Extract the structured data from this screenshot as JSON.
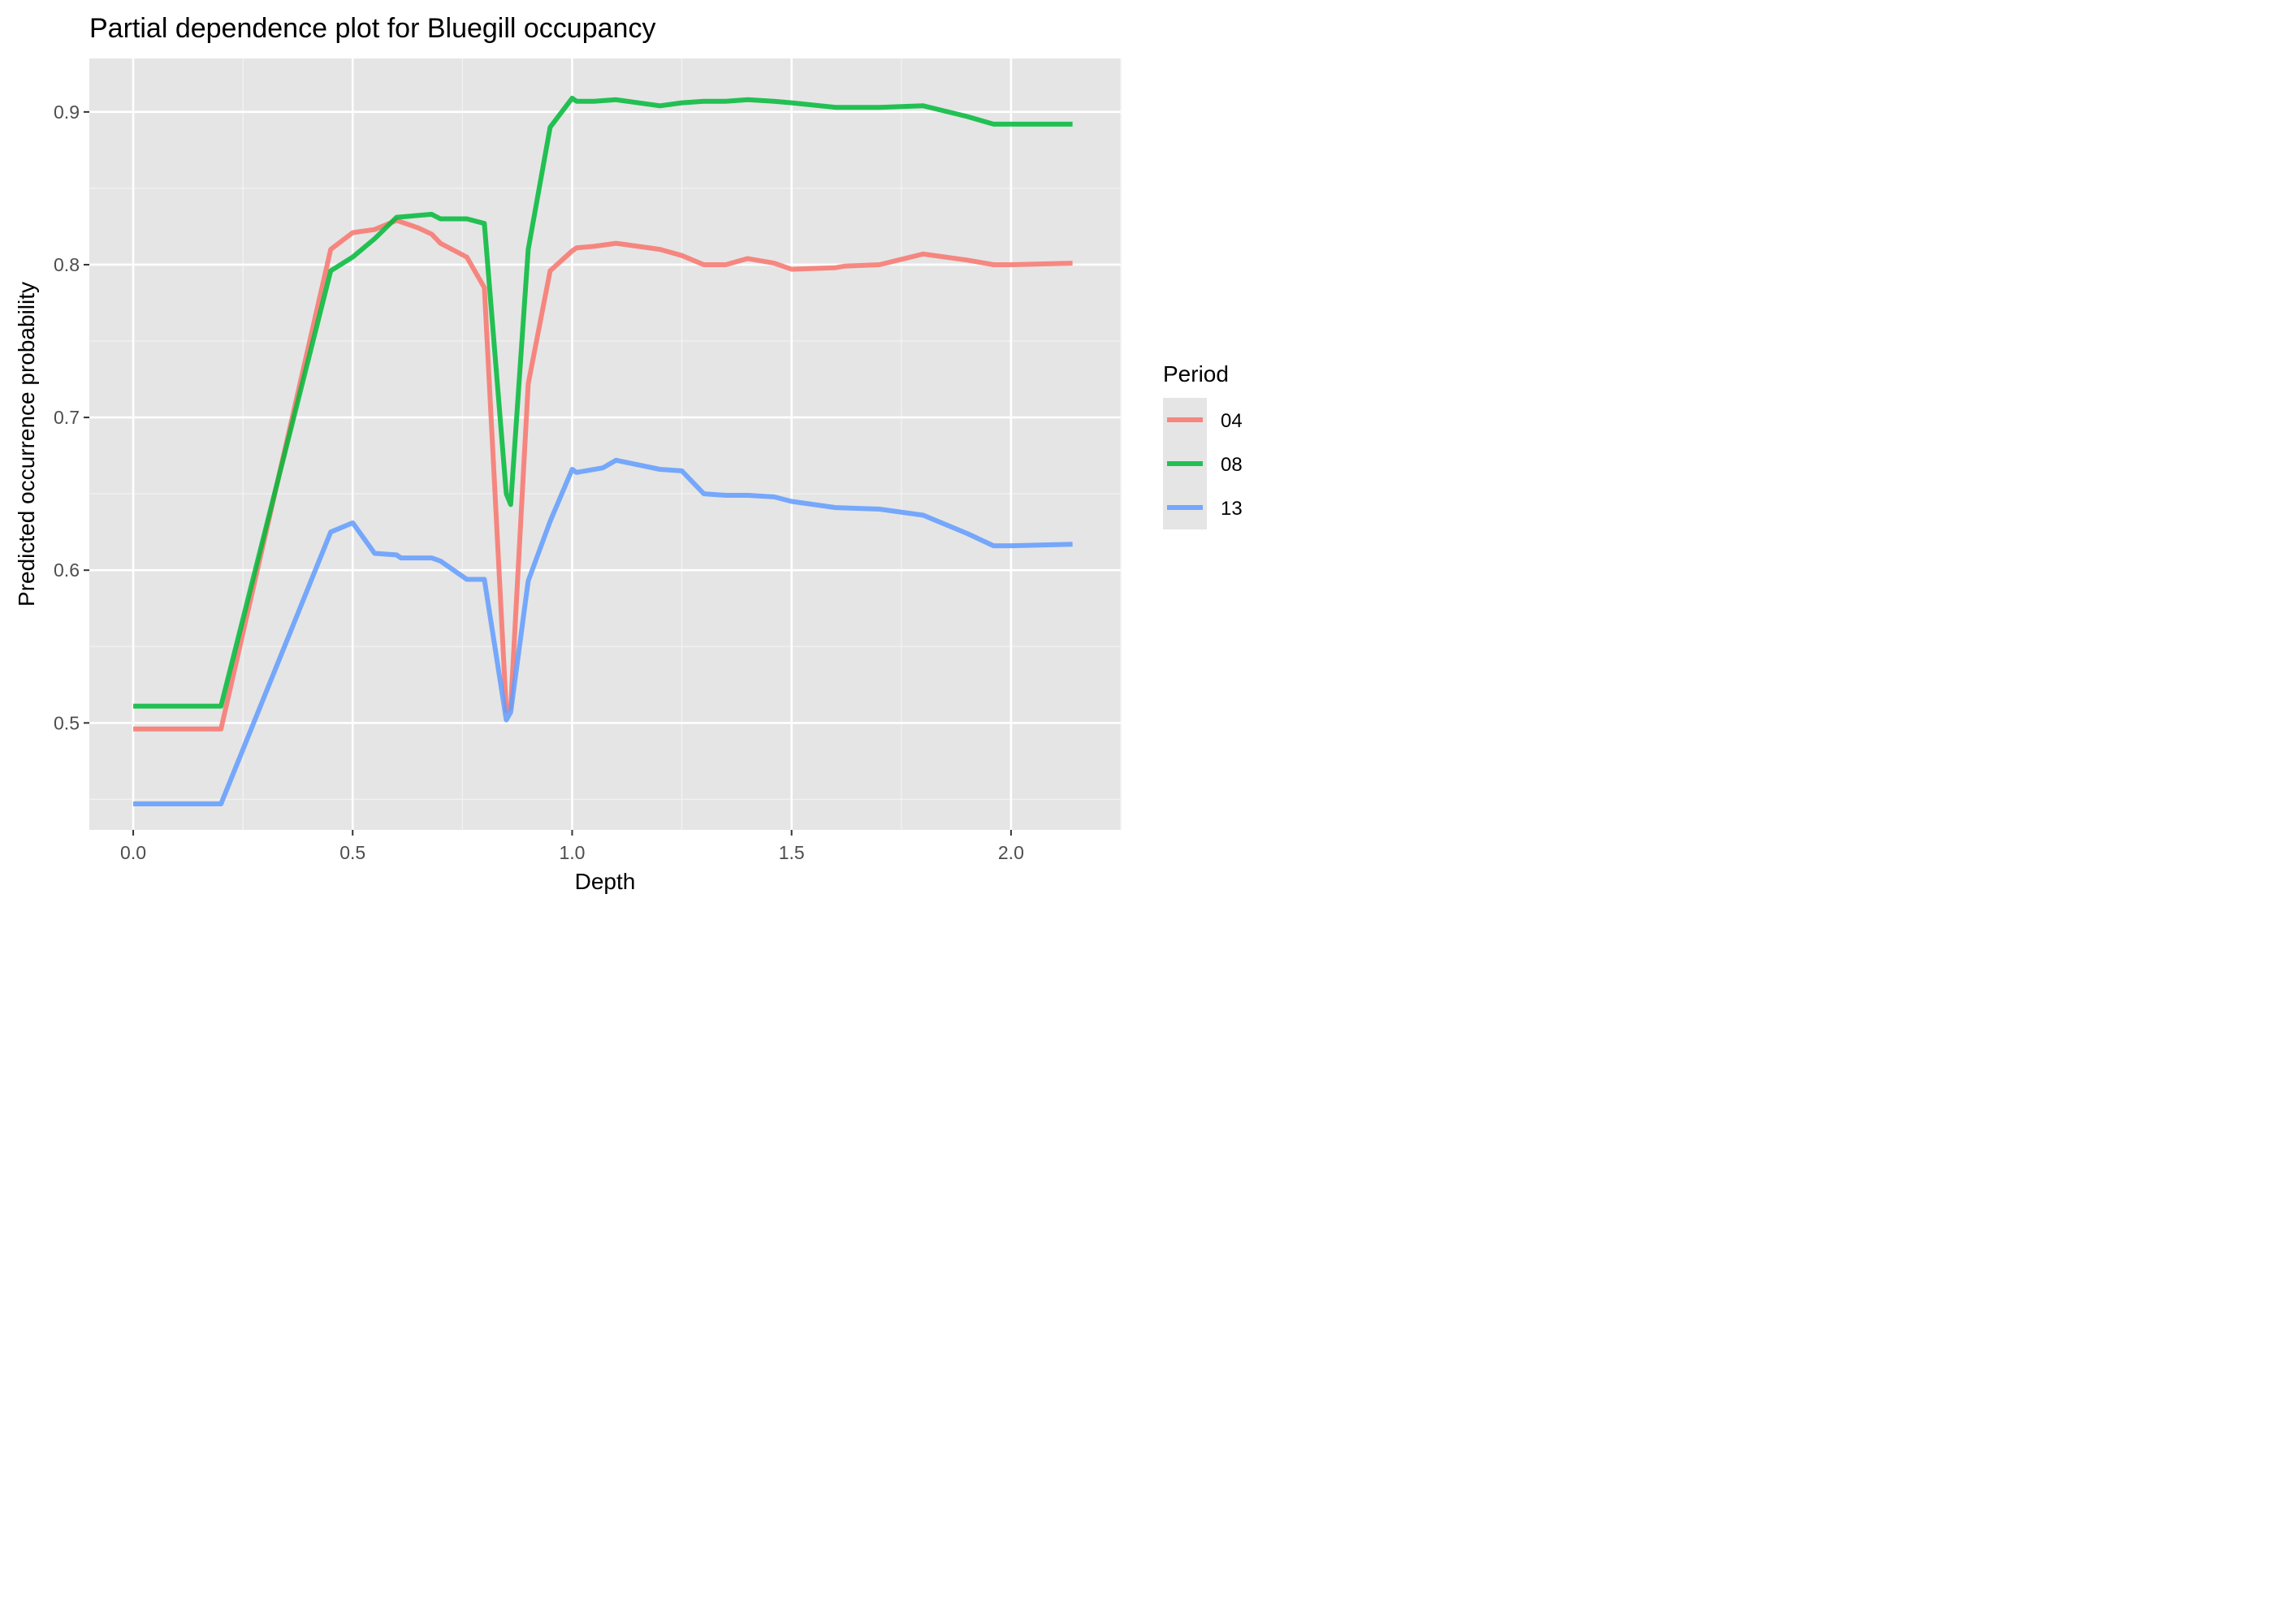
{
  "chart_data": {
    "type": "line",
    "title": "Partial dependence plot for Bluegill occupancy",
    "xlabel": "Depth",
    "ylabel": "Predicted occurrence probability",
    "xlim": [
      -0.1,
      2.25
    ],
    "ylim": [
      0.43,
      0.935
    ],
    "x_ticks": [
      0.0,
      0.5,
      1.0,
      1.5,
      2.0
    ],
    "x_tick_labels": [
      "0.0",
      "0.5",
      "1.0",
      "1.5",
      "2.0"
    ],
    "y_ticks": [
      0.5,
      0.6,
      0.7,
      0.8,
      0.9
    ],
    "y_tick_labels": [
      "0.5",
      "0.6",
      "0.7",
      "0.8",
      "0.9"
    ],
    "grid": true,
    "legend": {
      "title": "Period",
      "position": "right"
    },
    "series": [
      {
        "name": "04",
        "color": "#F8766D",
        "x": [
          0.0,
          0.2,
          0.45,
          0.5,
          0.55,
          0.6,
          0.65,
          0.68,
          0.7,
          0.76,
          0.8,
          0.85,
          0.86,
          0.9,
          0.95,
          1.0,
          1.01,
          1.05,
          1.1,
          1.2,
          1.25,
          1.3,
          1.35,
          1.4,
          1.46,
          1.5,
          1.6,
          1.62,
          1.7,
          1.8,
          1.9,
          1.96,
          2.0,
          2.14
        ],
        "y": [
          0.496,
          0.496,
          0.81,
          0.821,
          0.823,
          0.829,
          0.824,
          0.82,
          0.814,
          0.805,
          0.785,
          0.508,
          0.51,
          0.722,
          0.796,
          0.809,
          0.811,
          0.812,
          0.814,
          0.81,
          0.806,
          0.8,
          0.8,
          0.804,
          0.801,
          0.797,
          0.798,
          0.799,
          0.8,
          0.807,
          0.803,
          0.8,
          0.8,
          0.801
        ]
      },
      {
        "name": "08",
        "color": "#00BA38",
        "x": [
          0.0,
          0.2,
          0.45,
          0.5,
          0.55,
          0.6,
          0.68,
          0.7,
          0.76,
          0.8,
          0.85,
          0.86,
          0.9,
          0.95,
          1.0,
          1.01,
          1.05,
          1.1,
          1.2,
          1.25,
          1.3,
          1.35,
          1.4,
          1.46,
          1.5,
          1.6,
          1.7,
          1.8,
          1.9,
          1.96,
          2.0,
          2.14
        ],
        "y": [
          0.511,
          0.511,
          0.796,
          0.805,
          0.817,
          0.831,
          0.833,
          0.83,
          0.83,
          0.827,
          0.65,
          0.643,
          0.81,
          0.89,
          0.909,
          0.907,
          0.907,
          0.908,
          0.904,
          0.906,
          0.907,
          0.907,
          0.908,
          0.907,
          0.906,
          0.903,
          0.903,
          0.904,
          0.897,
          0.892,
          0.892,
          0.892
        ]
      },
      {
        "name": "13",
        "color": "#619CFF",
        "x": [
          0.0,
          0.2,
          0.45,
          0.5,
          0.55,
          0.6,
          0.61,
          0.68,
          0.7,
          0.76,
          0.8,
          0.85,
          0.86,
          0.9,
          0.95,
          1.0,
          1.01,
          1.07,
          1.1,
          1.2,
          1.25,
          1.3,
          1.35,
          1.4,
          1.46,
          1.5,
          1.6,
          1.7,
          1.8,
          1.9,
          1.96,
          2.0,
          2.14
        ],
        "y": [
          0.447,
          0.447,
          0.625,
          0.631,
          0.611,
          0.61,
          0.608,
          0.608,
          0.606,
          0.594,
          0.594,
          0.502,
          0.507,
          0.593,
          0.632,
          0.666,
          0.664,
          0.667,
          0.672,
          0.666,
          0.665,
          0.65,
          0.649,
          0.649,
          0.648,
          0.645,
          0.641,
          0.64,
          0.636,
          0.624,
          0.616,
          0.616,
          0.617
        ]
      }
    ]
  }
}
